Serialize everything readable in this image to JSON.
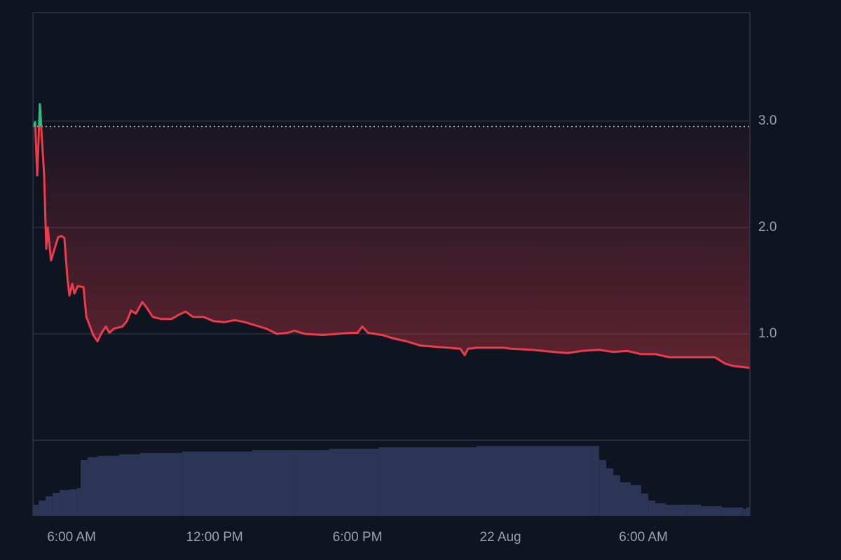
{
  "chart_data": {
    "type": "baseline",
    "x": [
      4.41,
      4.47,
      4.56,
      4.67,
      4.76,
      4.85,
      4.94,
      5.0,
      5.14,
      5.29,
      5.44,
      5.59,
      5.7,
      5.82,
      5.91,
      6.03,
      6.12,
      6.26,
      6.5,
      6.62,
      6.76,
      6.91,
      7.09,
      7.26,
      7.44,
      7.59,
      7.79,
      8.14,
      8.32,
      8.5,
      8.7,
      8.97,
      9.17,
      9.41,
      9.76,
      10.2,
      10.5,
      10.79,
      11.09,
      11.53,
      11.97,
      12.41,
      12.85,
      13.29,
      13.73,
      14.17,
      14.62,
      15.06,
      15.35,
      15.79,
      16.53,
      17.12,
      17.7,
      18.0,
      18.2,
      18.44,
      19.03,
      19.47,
      20.06,
      20.65,
      21.23,
      21.82,
      22.32,
      22.5,
      22.64,
      23.0,
      23.59,
      24.17,
      24.47,
      25.35,
      26.23,
      26.82,
      27.41,
      28.15,
      28.74,
      29.32,
      29.91,
      30.5,
      31.09,
      31.97,
      32.41,
      33.0,
      33.44,
      33.74,
      34.47
    ],
    "values": [
      2.95,
      2.99,
      2.49,
      3.16,
      2.82,
      2.49,
      1.8,
      2.0,
      1.69,
      1.8,
      1.91,
      1.92,
      1.9,
      1.54,
      1.36,
      1.47,
      1.38,
      1.45,
      1.44,
      1.16,
      1.08,
      0.99,
      0.93,
      1.01,
      1.07,
      1.01,
      1.05,
      1.07,
      1.12,
      1.22,
      1.19,
      1.3,
      1.24,
      1.16,
      1.14,
      1.14,
      1.18,
      1.21,
      1.16,
      1.16,
      1.12,
      1.11,
      1.13,
      1.11,
      1.08,
      1.05,
      1.0,
      1.01,
      1.03,
      1.0,
      0.99,
      1.0,
      1.01,
      1.01,
      1.07,
      1.01,
      0.99,
      0.96,
      0.93,
      0.89,
      0.88,
      0.87,
      0.86,
      0.8,
      0.86,
      0.87,
      0.87,
      0.87,
      0.86,
      0.85,
      0.83,
      0.82,
      0.84,
      0.85,
      0.83,
      0.84,
      0.81,
      0.81,
      0.78,
      0.78,
      0.78,
      0.78,
      0.72,
      0.7,
      0.68
    ],
    "baseline": 2.95,
    "up_color": "#26c281",
    "down_color": "#ec3b4b",
    "volume": {
      "color": "#2b3656",
      "x": [
        4.38,
        4.62,
        4.91,
        5.2,
        5.5,
        5.94,
        6.23,
        6.38,
        6.67,
        7.12,
        8.0,
        8.88,
        10.64,
        12.41,
        13.59,
        15.35,
        16.82,
        18.88,
        20.65,
        23.0,
        25.35,
        27.85,
        28.14,
        28.44,
        28.74,
        29.03,
        29.47,
        29.91,
        30.21,
        30.5,
        30.94,
        31.82,
        32.41,
        33.29,
        34.17,
        34.32
      ],
      "values": [
        16,
        22,
        28,
        33,
        37,
        38,
        40,
        80,
        84,
        86,
        88,
        90,
        92,
        92,
        94,
        94,
        96,
        98,
        98,
        100,
        100,
        100,
        80,
        68,
        58,
        48,
        44,
        32,
        22,
        18,
        16,
        16,
        14,
        12,
        10,
        12
      ],
      "ylim": [
        0,
        108
      ]
    },
    "xlim": [
      4.38,
      34.47
    ],
    "xticks": [
      {
        "value": 6,
        "label": "6:00 AM"
      },
      {
        "value": 12,
        "label": "12:00 PM"
      },
      {
        "value": 18,
        "label": "6:00 PM"
      },
      {
        "value": 24,
        "label": "22 Aug"
      },
      {
        "value": 30,
        "label": "6:00 AM"
      }
    ],
    "ylim": [
      0,
      4.02
    ],
    "yticks": [
      {
        "value": 1,
        "label": "1.0"
      },
      {
        "value": 2,
        "label": "2.0"
      },
      {
        "value": 3,
        "label": "3.0"
      }
    ],
    "grid": true
  }
}
